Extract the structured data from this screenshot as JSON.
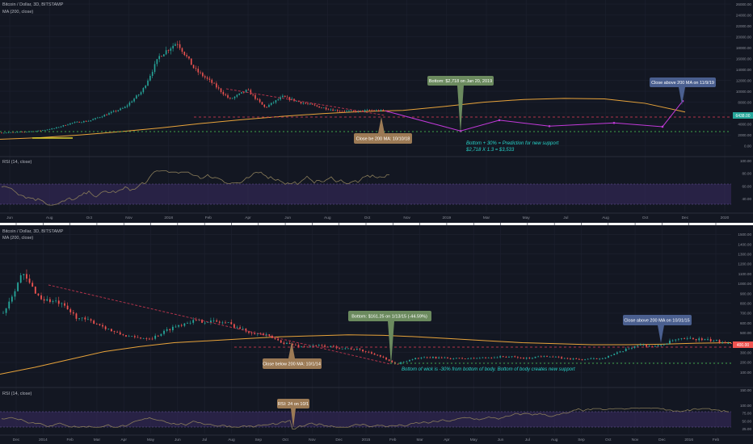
{
  "colors": {
    "background": "#131722",
    "grid": "#1e2230",
    "up": "#26a69a",
    "down": "#ef5350",
    "ma": "#e8a33a",
    "rsi_line": "#8a7d5a",
    "rsi_band": "#3b2b63",
    "trend": "#b0334a",
    "support": "#3fa44a",
    "projection": "#c239d9",
    "callout_green": "#6b8a5e",
    "callout_tan": "#9c7a55",
    "callout_blue": "#4a5f8f",
    "note_text": "#28d3c9",
    "price_tag": "#26a69a"
  },
  "top_panel": {
    "symbol": "Bitcoin / Dollar, 3D, BITSTAMP",
    "ma_label": "MA (200, close)",
    "rsi_label": "RSI (14, close)",
    "price_tag": "6438.00",
    "callout_bottom": "Bottom: $2,718 on Jan 20, 2019",
    "callout_close_below": "Close be 200 MA: 10/10/18",
    "callout_close_above": "Close above 200 MA on 11/9/19",
    "note_line1": "Bottom + 30% = Prediction for new support",
    "note_line2": "$2,718 X 1.3 = $3,533"
  },
  "bottom_panel": {
    "symbol": "Bitcoin / Dollar, 3D, BITSTAMP",
    "ma_label": "MA (200, close)",
    "rsi_label": "RSI (14, close)",
    "price_tag": "400.00",
    "callout_bottom": "Bottom: $161.25 on 1/13/15 (-44.59%)",
    "callout_close_below": "Close below 200 MA: 10/1/14",
    "callout_close_above": "Close above 200 MA on 10/31/15",
    "callout_rsi": "RSI: 24 on 10/1",
    "note": "Bottom of wick is -30% from bottom of body. Bottom of body creates new support"
  },
  "chart_data": [
    {
      "type": "candlestick",
      "title": "Bitcoin / Dollar, 3D, BITSTAMP",
      "series": [
        {
          "name": "MA (200, close)"
        }
      ],
      "x_ticks": [
        "Jun",
        "Aug",
        "Oct",
        "Nov",
        "2018",
        "Feb",
        "Apr",
        "Jun",
        "Aug",
        "Oct",
        "Nov",
        "2019",
        "Mar",
        "May",
        "Jul",
        "Aug",
        "Oct",
        "Dec",
        "2020"
      ],
      "y_ticks": [
        26000,
        24000,
        22000,
        20000,
        18000,
        16000,
        14000,
        12000,
        10000,
        8000,
        6000,
        4000,
        2000,
        0
      ],
      "ylim": [
        -500,
        26000
      ],
      "ma_values": [
        1200,
        1500,
        2000,
        2600,
        3300,
        4100,
        4800,
        5400,
        5900,
        6300,
        6500,
        7200,
        8000,
        8500,
        8700,
        8600,
        7800,
        6200
      ],
      "support_line": 3533,
      "resistance_line": 6000,
      "bottom_value": 2718,
      "last_close": 6438,
      "projection_path": [
        [
          6400,
          "Oct"
        ],
        [
          2718,
          "2019"
        ],
        [
          4700,
          "Mar"
        ],
        [
          3600,
          "May"
        ],
        [
          4200,
          "Jul"
        ],
        [
          3500,
          "Sep"
        ],
        [
          8200,
          "Nov"
        ]
      ],
      "rsi": {
        "name": "RSI (14, close)",
        "y_ticks": [
          100,
          80,
          60,
          40
        ],
        "ylim": [
          20,
          100
        ],
        "band": [
          30,
          70
        ]
      }
    },
    {
      "type": "candlestick",
      "title": "Bitcoin / Dollar, 3D, BITSTAMP",
      "series": [
        {
          "name": "MA (200, close)"
        }
      ],
      "x_ticks": [
        "Dec",
        "2014",
        "Feb",
        "Mar",
        "Apr",
        "May",
        "Jun",
        "Jul",
        "Aug",
        "Sep",
        "Oct",
        "Nov",
        "Dec",
        "2015",
        "Feb",
        "Mar",
        "Apr",
        "May",
        "Jun",
        "Jul",
        "Aug",
        "Sep",
        "Oct",
        "Nov",
        "Dec",
        "2016",
        "Feb"
      ],
      "y_ticks": [
        1500,
        1400,
        1300,
        1200,
        1100,
        1000,
        900,
        800,
        700,
        600,
        500,
        400,
        300,
        200,
        100
      ],
      "ylim": [
        60,
        1560
      ],
      "ma_values": [
        80,
        150,
        230,
        310,
        360,
        400,
        420,
        440,
        460,
        470,
        480,
        475,
        460,
        440,
        420,
        400,
        390,
        380,
        380,
        385,
        395,
        400
      ],
      "support_line": 210,
      "resistance_line": 355,
      "bottom_value": 161.25,
      "last_close": 400,
      "rsi": {
        "name": "RSI (14, close)",
        "y_ticks": [
          150,
          100,
          75,
          50,
          25
        ],
        "ylim": [
          10,
          150
        ],
        "band": [
          30,
          70
        ],
        "marked_low": 24
      }
    }
  ]
}
